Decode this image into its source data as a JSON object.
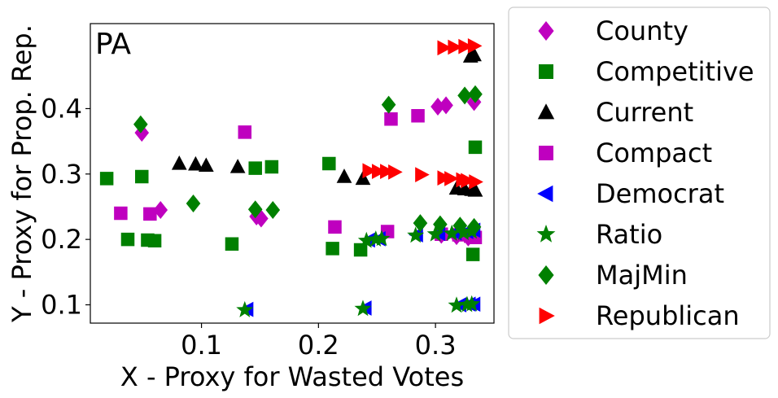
{
  "chart_data": {
    "type": "scatter",
    "panel_label": "PA",
    "xlabel": "X - Proxy for Wasted Votes",
    "ylabel": "Y - Proxy for Prop. Rep.",
    "xlim": [
      0.005,
      0.35
    ],
    "ylim": [
      0.072,
      0.53
    ],
    "xticks": [
      0.1,
      0.2,
      0.3
    ],
    "xtick_labels": [
      "0.1",
      "0.2",
      "0.3"
    ],
    "yticks": [
      0.1,
      0.2,
      0.3,
      0.4
    ],
    "ytick_labels": [
      "0.1",
      "0.2",
      "0.3",
      "0.4"
    ],
    "grid": false,
    "legend_position": "right, outside plot",
    "series": [
      {
        "name": "County",
        "marker": "diamond",
        "color": "#bf00bf",
        "points": [
          [
            0.049,
            0.363
          ],
          [
            0.065,
            0.245
          ],
          [
            0.147,
            0.235
          ],
          [
            0.151,
            0.232
          ],
          [
            0.302,
            0.403
          ],
          [
            0.309,
            0.405
          ],
          [
            0.333,
            0.41
          ],
          [
            0.305,
            0.207
          ],
          [
            0.318,
            0.205
          ],
          [
            0.328,
            0.203
          ]
        ]
      },
      {
        "name": "Competitive",
        "marker": "square",
        "color": "#008000",
        "points": [
          [
            0.019,
            0.293
          ],
          [
            0.049,
            0.296
          ],
          [
            0.037,
            0.2
          ],
          [
            0.054,
            0.199
          ],
          [
            0.06,
            0.198
          ],
          [
            0.126,
            0.193
          ],
          [
            0.146,
            0.309
          ],
          [
            0.16,
            0.311
          ],
          [
            0.209,
            0.316
          ],
          [
            0.212,
            0.186
          ],
          [
            0.236,
            0.184
          ],
          [
            0.332,
            0.177
          ],
          [
            0.334,
            0.341
          ]
        ]
      },
      {
        "name": "Current",
        "marker": "triangle-up",
        "color": "#000000",
        "points": [
          [
            0.081,
            0.316
          ],
          [
            0.095,
            0.315
          ],
          [
            0.104,
            0.313
          ],
          [
            0.131,
            0.311
          ],
          [
            0.222,
            0.296
          ],
          [
            0.238,
            0.293
          ],
          [
            0.318,
            0.278
          ],
          [
            0.325,
            0.277
          ],
          [
            0.331,
            0.276
          ],
          [
            0.334,
            0.275
          ],
          [
            0.33,
            0.48
          ],
          [
            0.333,
            0.482
          ]
        ]
      },
      {
        "name": "Compact",
        "marker": "square",
        "color": "#bf00bf",
        "points": [
          [
            0.031,
            0.24
          ],
          [
            0.056,
            0.239
          ],
          [
            0.137,
            0.364
          ],
          [
            0.214,
            0.219
          ],
          [
            0.259,
            0.212
          ],
          [
            0.262,
            0.384
          ],
          [
            0.285,
            0.389
          ],
          [
            0.305,
            0.208
          ],
          [
            0.32,
            0.207
          ],
          [
            0.33,
            0.205
          ],
          [
            0.334,
            0.203
          ]
        ]
      },
      {
        "name": "Democrat",
        "marker": "triangle-left",
        "color": "#0000ff",
        "points": [
          [
            0.139,
            0.093
          ],
          [
            0.24,
            0.095
          ],
          [
            0.321,
            0.1
          ],
          [
            0.329,
            0.101
          ],
          [
            0.333,
            0.101
          ],
          [
            0.243,
            0.199
          ],
          [
            0.252,
            0.201
          ],
          [
            0.284,
            0.207
          ],
          [
            0.303,
            0.209
          ],
          [
            0.317,
            0.21
          ],
          [
            0.327,
            0.212
          ],
          [
            0.333,
            0.214
          ]
        ]
      },
      {
        "name": "Ratio",
        "marker": "star",
        "color": "#008000",
        "points": [
          [
            0.137,
            0.092
          ],
          [
            0.238,
            0.094
          ],
          [
            0.318,
            0.099
          ],
          [
            0.327,
            0.1
          ],
          [
            0.331,
            0.101
          ],
          [
            0.241,
            0.198
          ],
          [
            0.249,
            0.2
          ],
          [
            0.254,
            0.201
          ],
          [
            0.283,
            0.206
          ],
          [
            0.3,
            0.208
          ],
          [
            0.314,
            0.209
          ],
          [
            0.324,
            0.21
          ],
          [
            0.331,
            0.212
          ]
        ]
      },
      {
        "name": "MajMin",
        "marker": "diamond",
        "color": "#008000",
        "points": [
          [
            0.048,
            0.376
          ],
          [
            0.093,
            0.255
          ],
          [
            0.146,
            0.246
          ],
          [
            0.161,
            0.245
          ],
          [
            0.26,
            0.406
          ],
          [
            0.287,
            0.225
          ],
          [
            0.304,
            0.223
          ],
          [
            0.321,
            0.221
          ],
          [
            0.333,
            0.219
          ],
          [
            0.325,
            0.42
          ],
          [
            0.334,
            0.422
          ]
        ]
      },
      {
        "name": "Republican",
        "marker": "triangle-right",
        "color": "#ff0000",
        "points": [
          [
            0.243,
            0.305
          ],
          [
            0.251,
            0.304
          ],
          [
            0.258,
            0.304
          ],
          [
            0.265,
            0.303
          ],
          [
            0.288,
            0.299
          ],
          [
            0.307,
            0.294
          ],
          [
            0.313,
            0.293
          ],
          [
            0.323,
            0.291
          ],
          [
            0.327,
            0.29
          ],
          [
            0.334,
            0.288
          ],
          [
            0.307,
            0.493
          ],
          [
            0.316,
            0.494
          ],
          [
            0.325,
            0.495
          ],
          [
            0.333,
            0.496
          ]
        ]
      }
    ]
  }
}
